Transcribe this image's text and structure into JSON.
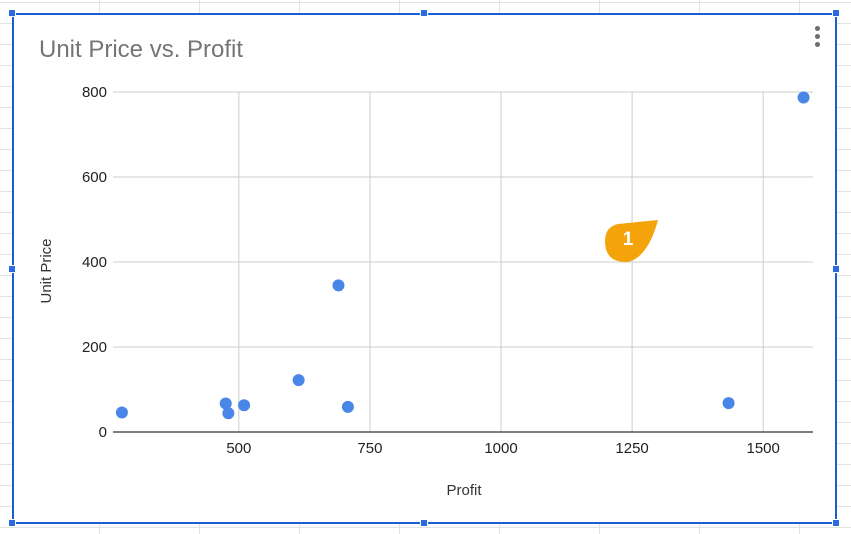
{
  "chart_data": {
    "type": "scatter",
    "title": "Unit Price vs. Profit",
    "xlabel": "Profit",
    "ylabel": "Unit Price",
    "xlim": [
      260,
      1595
    ],
    "ylim": [
      0,
      800
    ],
    "x_ticks": [
      500,
      750,
      1000,
      1250,
      1500
    ],
    "y_ticks": [
      0,
      200,
      400,
      600,
      800
    ],
    "grid": true,
    "legend": "none",
    "series": [
      {
        "color": "#4a86e8",
        "points": [
          {
            "x": 277,
            "y": 46
          },
          {
            "x": 475,
            "y": 67
          },
          {
            "x": 480,
            "y": 44
          },
          {
            "x": 510,
            "y": 63
          },
          {
            "x": 614,
            "y": 122
          },
          {
            "x": 690,
            "y": 345
          },
          {
            "x": 708,
            "y": 59
          },
          {
            "x": 1434,
            "y": 68
          },
          {
            "x": 1577,
            "y": 787
          }
        ]
      }
    ]
  },
  "annotation": {
    "label": "1",
    "color": "#f5a30b"
  },
  "colors": {
    "gridline": "#cccccc",
    "axis": "#333333",
    "tick_text": "#222222",
    "title_text": "#757575",
    "selection": "#1a5fd0"
  },
  "icons": {
    "menu": "more-vert-icon",
    "handle": "resize-handle-icon"
  }
}
